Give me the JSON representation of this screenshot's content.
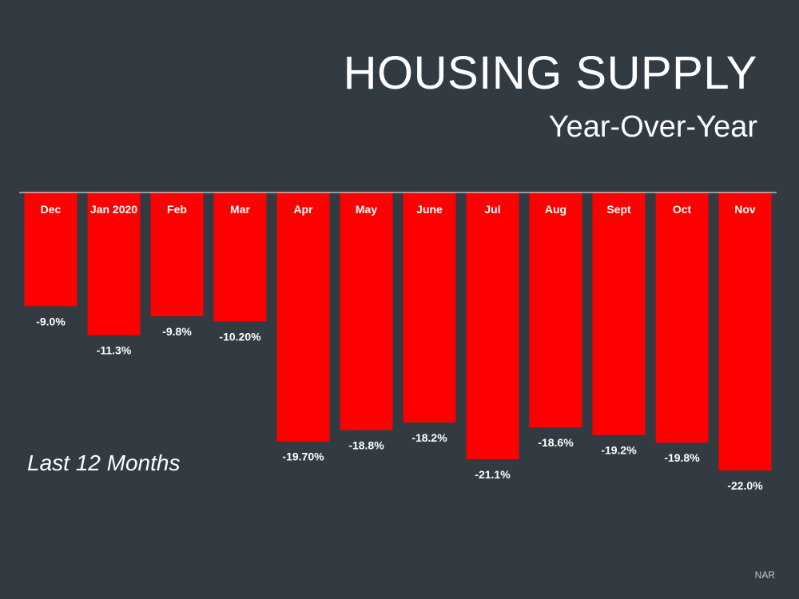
{
  "slide": {
    "title": "HOUSING SUPPLY",
    "subtitle": "Year-Over-Year",
    "period_label": "Last 12 Months",
    "source": "NAR"
  },
  "colors": {
    "background": "#323a42",
    "bar": "#ff0000",
    "text": "#ffffff"
  },
  "chart_data": {
    "type": "bar",
    "title": "HOUSING SUPPLY",
    "subtitle": "Year-Over-Year",
    "xlabel": "",
    "ylabel": "",
    "categories": [
      "Dec",
      "Jan 2020",
      "Feb",
      "Mar",
      "Apr",
      "May",
      "June",
      "Jul",
      "Aug",
      "Sept",
      "Oct",
      "Nov"
    ],
    "values": [
      -9.0,
      -11.3,
      -9.8,
      -10.2,
      -19.7,
      -18.8,
      -18.2,
      -21.1,
      -18.6,
      -19.2,
      -19.8,
      -22.0
    ],
    "data_labels": [
      "-9.0%",
      "-11.3%",
      "-9.8%",
      "-10.20%",
      "-19.70%",
      "-18.8%",
      "-18.2%",
      "-21.1%",
      "-18.6%",
      "-19.2%",
      "-19.8%",
      "-22.0%"
    ],
    "ylim": [
      -22.0,
      0
    ],
    "grid": false,
    "legend": "none",
    "category_labels_position": "inside-top"
  }
}
